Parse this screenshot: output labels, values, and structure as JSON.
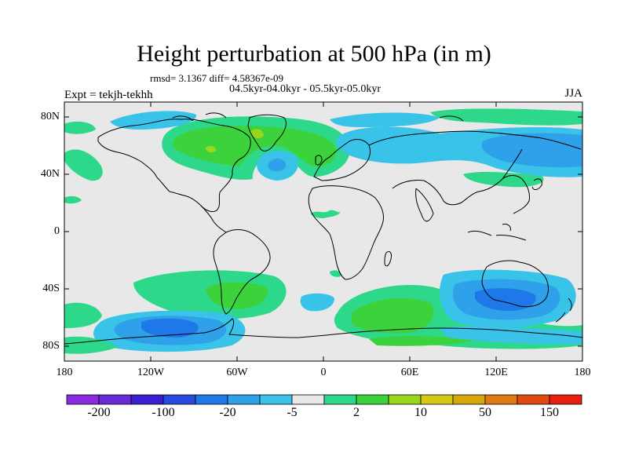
{
  "title": "Height perturbation at 500 hPa (in m)",
  "stats_line": "rmsd= 3.1367 diff= 4.58367e-09",
  "period_line": "04.5kyr-04.0kyr - 05.5kyr-05.0kyr",
  "experiment_line": "Expt = tekjh-tekhh",
  "season": "JJA",
  "lat_ticks": [
    "80N",
    "40N",
    "0",
    "40S",
    "80S"
  ],
  "lon_ticks": [
    "180",
    "120W",
    "60W",
    "0",
    "60E",
    "120E",
    "180"
  ],
  "colorbar": {
    "colors": [
      "#8a2be2",
      "#6a2ad8",
      "#3a1fd0",
      "#2a4ae0",
      "#1e78e8",
      "#2fa0ea",
      "#39c3e8",
      "#e8e8e8",
      "#2ed88a",
      "#3cd23c",
      "#9ad61e",
      "#d6c814",
      "#d6a80c",
      "#e07a10",
      "#e04a10",
      "#e81e10"
    ],
    "labels": [
      "-200",
      "-100",
      "-20",
      "-5",
      "2",
      "10",
      "50",
      "150"
    ]
  },
  "colors": {
    "background": "#e8e8e8",
    "light_blue": "#39c3e8",
    "mid_blue": "#2fa0ea",
    "deep_blue": "#1e78e8",
    "teal_green": "#2ed88a",
    "green": "#3cd23c",
    "lime": "#9ad61e",
    "coast": "#000000"
  }
}
